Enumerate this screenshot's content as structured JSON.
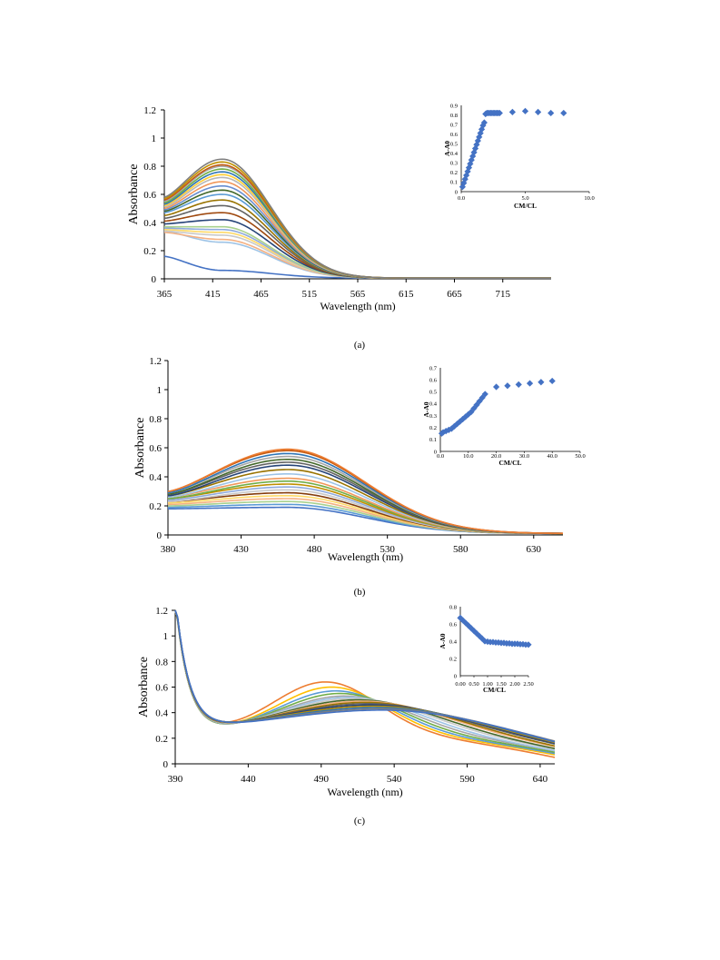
{
  "chart_data": [
    {
      "type": "line",
      "panel_label": "(a)",
      "xlabel": "Wavelength (nm)",
      "ylabel": "Absorbance",
      "xlim": [
        365,
        765
      ],
      "ylim": [
        0,
        1.2
      ],
      "x_ticks": [
        "365",
        "415",
        "465",
        "515",
        "565",
        "615",
        "665",
        "715"
      ],
      "y_ticks": [
        "0",
        "0.2",
        "0.4",
        "0.6",
        "0.8",
        "1",
        "1.2"
      ],
      "peak_nm": 425,
      "tail_width": 70,
      "min_x": 365,
      "series": [
        {
          "peak": 0.06,
          "start": 0.16,
          "baseline": 0.005,
          "color": "#4472c4"
        },
        {
          "peak": 0.26,
          "start": 0.34,
          "baseline": 0.005,
          "color": "#9dc3e6"
        },
        {
          "peak": 0.28,
          "start": 0.33,
          "baseline": 0.005,
          "color": "#f4b183"
        },
        {
          "peak": 0.31,
          "start": 0.34,
          "baseline": 0.005,
          "color": "#c9c9c9"
        },
        {
          "peak": 0.33,
          "start": 0.35,
          "baseline": 0.005,
          "color": "#ffd966"
        },
        {
          "peak": 0.35,
          "start": 0.36,
          "baseline": 0.005,
          "color": "#8faadc"
        },
        {
          "peak": 0.37,
          "start": 0.37,
          "baseline": 0.005,
          "color": "#a9d18e"
        },
        {
          "peak": 0.42,
          "start": 0.39,
          "baseline": 0.005,
          "color": "#264478"
        },
        {
          "peak": 0.47,
          "start": 0.41,
          "baseline": 0.005,
          "color": "#9e480e"
        },
        {
          "peak": 0.52,
          "start": 0.43,
          "baseline": 0.005,
          "color": "#636363"
        },
        {
          "peak": 0.56,
          "start": 0.45,
          "baseline": 0.005,
          "color": "#997300"
        },
        {
          "peak": 0.6,
          "start": 0.47,
          "baseline": 0.005,
          "color": "#5b9bd5"
        },
        {
          "peak": 0.63,
          "start": 0.48,
          "baseline": 0.005,
          "color": "#43682b"
        },
        {
          "peak": 0.66,
          "start": 0.49,
          "baseline": 0.005,
          "color": "#698ed0"
        },
        {
          "peak": 0.69,
          "start": 0.5,
          "baseline": 0.005,
          "color": "#f1975a"
        },
        {
          "peak": 0.72,
          "start": 0.51,
          "baseline": 0.005,
          "color": "#b7b7b7"
        },
        {
          "peak": 0.74,
          "start": 0.52,
          "baseline": 0.005,
          "color": "#ffcd33"
        },
        {
          "peak": 0.76,
          "start": 0.53,
          "baseline": 0.005,
          "color": "#2e75b6"
        },
        {
          "peak": 0.78,
          "start": 0.54,
          "baseline": 0.005,
          "color": "#70ad47"
        },
        {
          "peak": 0.8,
          "start": 0.55,
          "baseline": 0.005,
          "color": "#a5a5a5"
        },
        {
          "peak": 0.81,
          "start": 0.56,
          "baseline": 0.005,
          "color": "#c55a11"
        },
        {
          "peak": 0.83,
          "start": 0.57,
          "baseline": 0.005,
          "color": "#bf9000"
        },
        {
          "peak": 0.85,
          "start": 0.58,
          "baseline": 0.005,
          "color": "#7f7f7f"
        }
      ],
      "inset": {
        "type": "scatter",
        "xlabel": "CM/CL",
        "ylabel": "A-A0",
        "xlim": [
          0,
          10
        ],
        "ylim": [
          0,
          0.9
        ],
        "x_ticks": [
          "0.0",
          "5.0",
          "10.0"
        ],
        "y_ticks": [
          "0",
          "0.1",
          "0.2",
          "0.3",
          "0.4",
          "0.5",
          "0.6",
          "0.7",
          "0.8",
          "0.9"
        ],
        "marker_color": "#4472c4",
        "points": [
          [
            0.1,
            0.05
          ],
          [
            0.2,
            0.09
          ],
          [
            0.3,
            0.13
          ],
          [
            0.4,
            0.17
          ],
          [
            0.5,
            0.21
          ],
          [
            0.6,
            0.25
          ],
          [
            0.7,
            0.29
          ],
          [
            0.8,
            0.33
          ],
          [
            0.9,
            0.37
          ],
          [
            1.0,
            0.41
          ],
          [
            1.1,
            0.45
          ],
          [
            1.2,
            0.49
          ],
          [
            1.3,
            0.53
          ],
          [
            1.4,
            0.57
          ],
          [
            1.5,
            0.61
          ],
          [
            1.6,
            0.65
          ],
          [
            1.7,
            0.69
          ],
          [
            1.8,
            0.72
          ],
          [
            1.9,
            0.81
          ],
          [
            2.0,
            0.82
          ],
          [
            2.1,
            0.82
          ],
          [
            2.2,
            0.82
          ],
          [
            2.3,
            0.82
          ],
          [
            2.4,
            0.82
          ],
          [
            2.5,
            0.82
          ],
          [
            2.6,
            0.82
          ],
          [
            2.7,
            0.82
          ],
          [
            2.8,
            0.82
          ],
          [
            2.9,
            0.82
          ],
          [
            3.0,
            0.82
          ],
          [
            4.0,
            0.83
          ],
          [
            5.0,
            0.84
          ],
          [
            6.0,
            0.83
          ],
          [
            7.0,
            0.82
          ],
          [
            8.0,
            0.82
          ]
        ]
      }
    },
    {
      "type": "line",
      "panel_label": "(b)",
      "xlabel": "Wavelength (nm)",
      "ylabel": "Absorbance",
      "xlim": [
        380,
        650
      ],
      "ylim": [
        0,
        1.2
      ],
      "x_ticks": [
        "380",
        "430",
        "480",
        "530",
        "580",
        "630"
      ],
      "y_ticks": [
        "0",
        "0.2",
        "0.4",
        "0.6",
        "0.8",
        "1",
        "1.2"
      ],
      "peak_nm": 462,
      "tail_width": 75,
      "min_x": 380,
      "series": [
        {
          "peak": 0.19,
          "start": 0.18,
          "baseline": 0.01,
          "color": "#4472c4"
        },
        {
          "peak": 0.21,
          "start": 0.19,
          "baseline": 0.01,
          "color": "#5b9bd5"
        },
        {
          "peak": 0.23,
          "start": 0.2,
          "baseline": 0.01,
          "color": "#a9d18e"
        },
        {
          "peak": 0.25,
          "start": 0.21,
          "baseline": 0.01,
          "color": "#f4b183"
        },
        {
          "peak": 0.27,
          "start": 0.22,
          "baseline": 0.01,
          "color": "#ffd966"
        },
        {
          "peak": 0.29,
          "start": 0.23,
          "baseline": 0.01,
          "color": "#843c0c"
        },
        {
          "peak": 0.31,
          "start": 0.23,
          "baseline": 0.01,
          "color": "#c9c9c9"
        },
        {
          "peak": 0.33,
          "start": 0.24,
          "baseline": 0.01,
          "color": "#8faadc"
        },
        {
          "peak": 0.35,
          "start": 0.25,
          "baseline": 0.01,
          "color": "#bf9000"
        },
        {
          "peak": 0.37,
          "start": 0.25,
          "baseline": 0.01,
          "color": "#70ad47"
        },
        {
          "peak": 0.39,
          "start": 0.26,
          "baseline": 0.01,
          "color": "#f1975a"
        },
        {
          "peak": 0.42,
          "start": 0.26,
          "baseline": 0.01,
          "color": "#9dc3e6"
        },
        {
          "peak": 0.45,
          "start": 0.27,
          "baseline": 0.01,
          "color": "#997300"
        },
        {
          "peak": 0.48,
          "start": 0.27,
          "baseline": 0.01,
          "color": "#264478"
        },
        {
          "peak": 0.5,
          "start": 0.28,
          "baseline": 0.01,
          "color": "#636363"
        },
        {
          "peak": 0.52,
          "start": 0.28,
          "baseline": 0.01,
          "color": "#43682b"
        },
        {
          "peak": 0.54,
          "start": 0.29,
          "baseline": 0.01,
          "color": "#a5a5a5"
        },
        {
          "peak": 0.56,
          "start": 0.29,
          "baseline": 0.01,
          "color": "#2e75b6"
        },
        {
          "peak": 0.58,
          "start": 0.3,
          "baseline": 0.01,
          "color": "#c55a11"
        },
        {
          "peak": 0.59,
          "start": 0.3,
          "baseline": 0.01,
          "color": "#ed7d31"
        }
      ],
      "inset": {
        "type": "scatter",
        "xlabel": "CM/CL",
        "ylabel": "A-A0",
        "xlim": [
          0,
          50
        ],
        "ylim": [
          0,
          0.7
        ],
        "x_ticks": [
          "0.0",
          "10.0",
          "20.0",
          "30.0",
          "40.0",
          "50.0"
        ],
        "y_ticks": [
          "0",
          "0.1",
          "0.2",
          "0.3",
          "0.4",
          "0.5",
          "0.6",
          "0.7"
        ],
        "marker_color": "#4472c4",
        "points": [
          [
            0.5,
            0.15
          ],
          [
            1.0,
            0.16
          ],
          [
            2.0,
            0.17
          ],
          [
            3.0,
            0.18
          ],
          [
            4.0,
            0.19
          ],
          [
            5.0,
            0.21
          ],
          [
            6.0,
            0.23
          ],
          [
            7.0,
            0.25
          ],
          [
            8.0,
            0.27
          ],
          [
            9.0,
            0.29
          ],
          [
            10.0,
            0.31
          ],
          [
            11.0,
            0.33
          ],
          [
            12.0,
            0.36
          ],
          [
            13.0,
            0.39
          ],
          [
            14.0,
            0.42
          ],
          [
            15.0,
            0.45
          ],
          [
            16.0,
            0.48
          ],
          [
            20.0,
            0.54
          ],
          [
            24.0,
            0.55
          ],
          [
            28.0,
            0.56
          ],
          [
            32.0,
            0.57
          ],
          [
            36.0,
            0.58
          ],
          [
            40.0,
            0.59
          ]
        ]
      }
    },
    {
      "type": "line",
      "panel_label": "(c)",
      "xlabel": "Wavelength (nm)",
      "ylabel": "Absorbance",
      "xlim": [
        390,
        650
      ],
      "ylim": [
        0,
        1.2
      ],
      "x_ticks": [
        "390",
        "440",
        "490",
        "540",
        "590",
        "640"
      ],
      "y_ticks": [
        "0",
        "0.2",
        "0.4",
        "0.6",
        "0.8",
        "1",
        "1.2"
      ],
      "min_x": 412,
      "decay_start": 1.05,
      "min_value": 0.25,
      "series": [
        {
          "peak_nm": 493,
          "peak": 0.65,
          "width": 50,
          "end": 0.05,
          "color": "#ed7d31"
        },
        {
          "peak_nm": 497,
          "peak": 0.61,
          "width": 52,
          "end": 0.07,
          "color": "#ffc000"
        },
        {
          "peak_nm": 500,
          "peak": 0.58,
          "width": 55,
          "end": 0.08,
          "color": "#5b9bd5"
        },
        {
          "peak_nm": 503,
          "peak": 0.56,
          "width": 58,
          "end": 0.09,
          "color": "#70ad47"
        },
        {
          "peak_nm": 506,
          "peak": 0.54,
          "width": 62,
          "end": 0.1,
          "color": "#a5a5a5"
        },
        {
          "peak_nm": 509,
          "peak": 0.53,
          "width": 66,
          "end": 0.1,
          "color": "#9dc3e6"
        },
        {
          "peak_nm": 512,
          "peak": 0.52,
          "width": 70,
          "end": 0.11,
          "color": "#c9c9c9"
        },
        {
          "peak_nm": 515,
          "peak": 0.51,
          "width": 74,
          "end": 0.11,
          "color": "#43682b"
        },
        {
          "peak_nm": 518,
          "peak": 0.5,
          "width": 78,
          "end": 0.12,
          "color": "#f4b183"
        },
        {
          "peak_nm": 520,
          "peak": 0.49,
          "width": 82,
          "end": 0.12,
          "color": "#997300"
        },
        {
          "peak_nm": 522,
          "peak": 0.48,
          "width": 86,
          "end": 0.13,
          "color": "#636363"
        },
        {
          "peak_nm": 524,
          "peak": 0.47,
          "width": 90,
          "end": 0.13,
          "color": "#264478"
        },
        {
          "peak_nm": 526,
          "peak": 0.46,
          "width": 94,
          "end": 0.13,
          "color": "#bf9000"
        },
        {
          "peak_nm": 528,
          "peak": 0.45,
          "width": 98,
          "end": 0.13,
          "color": "#2e75b6"
        },
        {
          "peak_nm": 530,
          "peak": 0.44,
          "width": 102,
          "end": 0.13,
          "color": "#7f7f7f"
        },
        {
          "peak_nm": 532,
          "peak": 0.43,
          "width": 106,
          "end": 0.12,
          "color": "#4472c4"
        }
      ],
      "inset": {
        "type": "scatter",
        "xlabel": "CM/CL",
        "ylabel": "A-A0",
        "xlim": [
          0,
          2.5
        ],
        "ylim": [
          0,
          0.8
        ],
        "x_ticks": [
          "0.00",
          "0.50",
          "1.00",
          "1.50",
          "2.00",
          "2.50"
        ],
        "y_ticks": [
          "0",
          "0.2",
          "0.4",
          "0.6",
          "0.8"
        ],
        "marker_color": "#4472c4",
        "points": [
          [
            0.0,
            0.67
          ],
          [
            0.1,
            0.64
          ],
          [
            0.2,
            0.61
          ],
          [
            0.3,
            0.58
          ],
          [
            0.4,
            0.55
          ],
          [
            0.5,
            0.52
          ],
          [
            0.6,
            0.49
          ],
          [
            0.7,
            0.46
          ],
          [
            0.8,
            0.43
          ],
          [
            0.9,
            0.4
          ],
          [
            1.0,
            0.395
          ],
          [
            1.1,
            0.39
          ],
          [
            1.2,
            0.39
          ],
          [
            1.3,
            0.385
          ],
          [
            1.4,
            0.385
          ],
          [
            1.5,
            0.38
          ],
          [
            1.6,
            0.38
          ],
          [
            1.7,
            0.375
          ],
          [
            1.8,
            0.375
          ],
          [
            1.9,
            0.37
          ],
          [
            2.0,
            0.37
          ],
          [
            2.1,
            0.37
          ],
          [
            2.2,
            0.365
          ],
          [
            2.3,
            0.365
          ],
          [
            2.4,
            0.36
          ],
          [
            2.5,
            0.36
          ]
        ]
      }
    }
  ]
}
